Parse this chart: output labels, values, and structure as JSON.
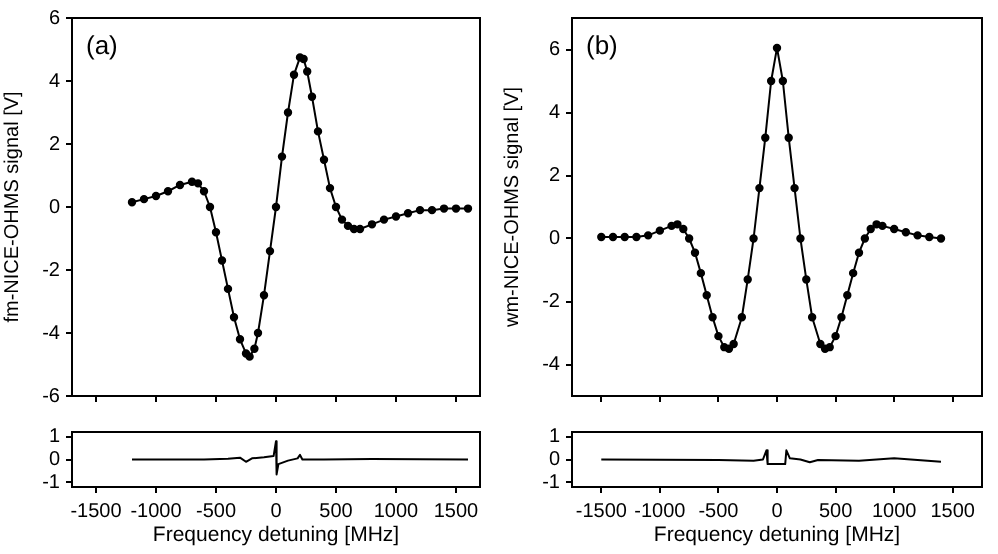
{
  "chart_data": [
    {
      "type": "line",
      "ylabel": "fm-NICE-OHMS signal [V]",
      "annotations": [
        "(a)"
      ],
      "xlim": [
        -1700,
        1700
      ],
      "ylim": [
        -6,
        6
      ],
      "xticks": [
        -1500,
        -1000,
        -500,
        0,
        500,
        1000,
        1500
      ],
      "yticks": [
        -6,
        -4,
        -2,
        0,
        2,
        4,
        6
      ],
      "tick_labels": "y",
      "grid": false,
      "legend": false,
      "marker": "circle",
      "line_style": "solid",
      "x": [
        -1200,
        -1100,
        -1000,
        -900,
        -800,
        -700,
        -650,
        -600,
        -550,
        -500,
        -450,
        -400,
        -350,
        -300,
        -250,
        -220,
        -180,
        -150,
        -100,
        -50,
        0,
        50,
        100,
        150,
        200,
        230,
        260,
        300,
        350,
        400,
        450,
        500,
        550,
        600,
        650,
        700,
        800,
        900,
        1000,
        1100,
        1200,
        1300,
        1400,
        1500,
        1600
      ],
      "series": [
        {
          "color": "#000000",
          "values": [
            0.15,
            0.25,
            0.35,
            0.5,
            0.7,
            0.8,
            0.75,
            0.5,
            0.0,
            -0.8,
            -1.7,
            -2.6,
            -3.5,
            -4.2,
            -4.65,
            -4.75,
            -4.5,
            -4.0,
            -2.8,
            -1.4,
            0,
            1.6,
            3.0,
            4.2,
            4.75,
            4.7,
            4.3,
            3.5,
            2.4,
            1.5,
            0.6,
            0.0,
            -0.4,
            -0.6,
            -0.7,
            -0.7,
            -0.55,
            -0.4,
            -0.3,
            -0.2,
            -0.1,
            -0.1,
            -0.05,
            -0.05,
            -0.05
          ]
        }
      ]
    },
    {
      "type": "line",
      "xlabel": "Frequency detuning [MHz]",
      "xlim": [
        -1700,
        1700
      ],
      "ylim": [
        -1.2,
        1.2
      ],
      "xticks": [
        -1500,
        -1000,
        -500,
        0,
        500,
        1000,
        1500
      ],
      "yticks": [
        -1,
        0,
        1
      ],
      "grid": false,
      "legend": false,
      "marker": "none",
      "line_style": "solid",
      "x": [
        -1200,
        -600,
        -400,
        -300,
        -250,
        -200,
        -100,
        -20,
        0,
        5,
        20,
        100,
        180,
        200,
        220,
        400,
        800,
        1600
      ],
      "series": [
        {
          "color": "#000000",
          "values": [
            0,
            0,
            0.03,
            0.08,
            -0.1,
            0.05,
            0.1,
            0.15,
            0.8,
            -0.65,
            -0.2,
            -0.05,
            0.05,
            0.2,
            0,
            0,
            0.02,
            0
          ]
        }
      ]
    },
    {
      "type": "line",
      "ylabel": "wm-NICE-OHMS signal [V]",
      "annotations": [
        "(b)"
      ],
      "xlim": [
        -1750,
        1750
      ],
      "ylim": [
        -5,
        7
      ],
      "xticks": [
        -1500,
        -1000,
        -500,
        0,
        500,
        1000,
        1500
      ],
      "yticks": [
        -4,
        -2,
        0,
        2,
        4,
        6
      ],
      "tick_labels": "y",
      "grid": false,
      "legend": false,
      "marker": "circle",
      "line_style": "solid",
      "x": [
        -1500,
        -1400,
        -1300,
        -1200,
        -1100,
        -1000,
        -900,
        -850,
        -800,
        -750,
        -700,
        -650,
        -600,
        -550,
        -500,
        -450,
        -410,
        -370,
        -300,
        -250,
        -200,
        -150,
        -100,
        -50,
        0,
        50,
        100,
        150,
        200,
        250,
        300,
        370,
        410,
        450,
        500,
        550,
        600,
        650,
        700,
        750,
        800,
        850,
        900,
        1000,
        1100,
        1200,
        1300,
        1400
      ],
      "series": [
        {
          "color": "#000000",
          "values": [
            0.05,
            0.05,
            0.05,
            0.05,
            0.1,
            0.25,
            0.4,
            0.45,
            0.3,
            0.0,
            -0.45,
            -1.1,
            -1.8,
            -2.5,
            -3.1,
            -3.45,
            -3.5,
            -3.35,
            -2.5,
            -1.3,
            0.0,
            1.6,
            3.2,
            5.0,
            6.05,
            5.0,
            3.2,
            1.6,
            0.0,
            -1.3,
            -2.5,
            -3.35,
            -3.5,
            -3.45,
            -3.1,
            -2.5,
            -1.8,
            -1.1,
            -0.45,
            0.0,
            0.3,
            0.45,
            0.4,
            0.3,
            0.2,
            0.1,
            0.05,
            0.0
          ]
        }
      ]
    },
    {
      "type": "line",
      "xlabel": "Frequency detuning [MHz]",
      "xlim": [
        -1750,
        1750
      ],
      "ylim": [
        -1.2,
        1.2
      ],
      "xticks": [
        -1500,
        -1000,
        -500,
        0,
        500,
        1000,
        1500
      ],
      "yticks": [
        -1,
        0,
        1
      ],
      "grid": false,
      "legend": false,
      "marker": "none",
      "line_style": "solid",
      "x": [
        -1500,
        -500,
        -200,
        -120,
        -90,
        -80,
        70,
        80,
        110,
        200,
        280,
        350,
        700,
        1000,
        1400
      ],
      "series": [
        {
          "color": "#000000",
          "values": [
            0,
            -0.02,
            -0.05,
            0,
            0.4,
            -0.2,
            -0.2,
            0.4,
            0.05,
            0,
            -0.12,
            -0.02,
            -0.05,
            0.05,
            -0.1
          ]
        }
      ]
    }
  ]
}
